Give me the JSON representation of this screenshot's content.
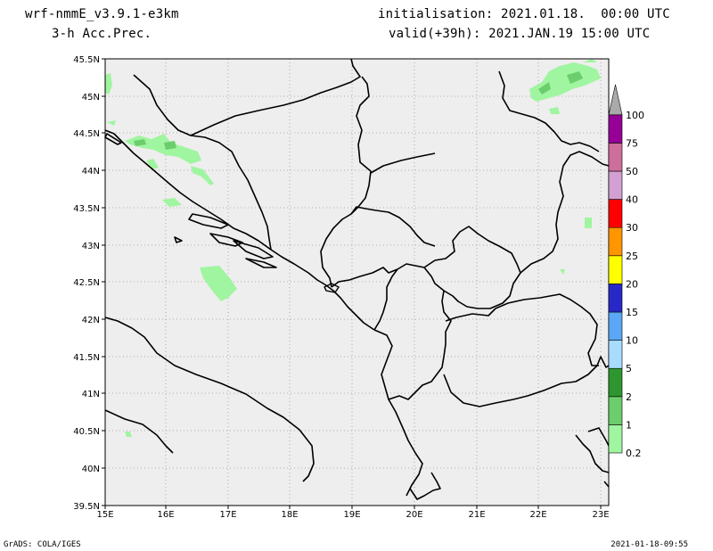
{
  "header": {
    "model": "wrf-nmmE_v3.9.1-e3km",
    "field": "3-h Acc.Prec.",
    "initialisation": "initialisation: 2021.01.18.  00:00 UTC",
    "valid": "valid(+39h): 2021.JAN.19 15:00 UTC"
  },
  "footer": {
    "left": "GrADS: COLA/IGES",
    "right": "2021-01-18-09:55"
  },
  "map": {
    "lat_labels": [
      "45.5N",
      "45N",
      "44.5N",
      "44N",
      "43.5N",
      "43N",
      "42.5N",
      "42N",
      "41.5N",
      "41N",
      "40.5N",
      "40N",
      "39.5N"
    ],
    "lon_labels": [
      "15E",
      "16E",
      "17E",
      "18E",
      "19E",
      "20E",
      "21E",
      "22E",
      "23E"
    ],
    "lat_range": [
      39.5,
      45.5
    ],
    "lon_range": [
      15,
      23.3
    ],
    "background_color": "#eeeeee",
    "grid": "dotted"
  },
  "colorbar": {
    "levels": [
      "0.2",
      "1",
      "2",
      "5",
      "10",
      "15",
      "20",
      "25",
      "30",
      "40",
      "50",
      "75",
      "100"
    ],
    "colors": [
      "#a0f5a0",
      "#6ccd6c",
      "#2e962e",
      "#a8dcff",
      "#5aa8f5",
      "#2828c8",
      "#ffff00",
      "#ff9600",
      "#ff0000",
      "#d2a0d2",
      "#cd6e9b",
      "#960096",
      "#aaaaaa"
    ]
  }
}
